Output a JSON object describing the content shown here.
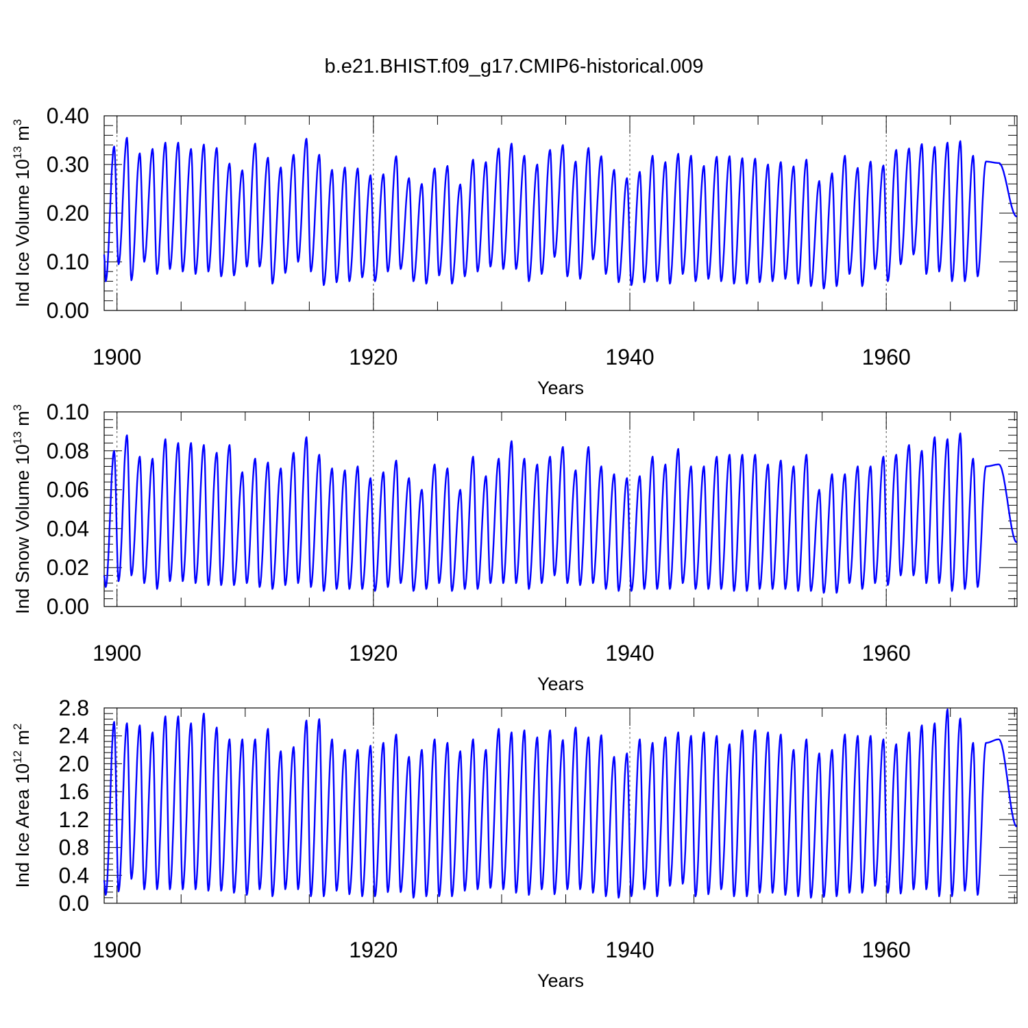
{
  "title": "b.e21.BHIST.f09_g17.CMIP6-historical.009",
  "series_color": "#0000ff",
  "chart_data": [
    {
      "type": "line",
      "name": "ice-volume",
      "ylabel": "Ind Ice Volume 10",
      "ylabel_exp": "13",
      "ylabel_unit": " m",
      "ylabel_unit_exp": "3",
      "xlabel": "Years",
      "xlim": [
        1899,
        1970.2
      ],
      "ylim": [
        0.0,
        0.4
      ],
      "yticks": [
        0.0,
        0.1,
        0.2,
        0.3,
        0.4
      ],
      "yticklabels": [
        "0.00",
        "0.10",
        "0.20",
        "0.30",
        "0.40"
      ],
      "xticks": [
        1900,
        1920,
        1940,
        1960
      ],
      "xticklabels": [
        "1900",
        "1920",
        "1940",
        "1960"
      ],
      "grid_x": [
        1900,
        1920,
        1940,
        1960
      ],
      "start_year": 1899,
      "first_value": 0.115,
      "last_value": 0.193,
      "annual_max": [
        0.337,
        0.355,
        0.323,
        0.332,
        0.345,
        0.345,
        0.332,
        0.341,
        0.334,
        0.302,
        0.288,
        0.343,
        0.314,
        0.294,
        0.32,
        0.353,
        0.32,
        0.289,
        0.294,
        0.292,
        0.278,
        0.28,
        0.317,
        0.272,
        0.26,
        0.292,
        0.297,
        0.259,
        0.31,
        0.305,
        0.333,
        0.343,
        0.318,
        0.3,
        0.33,
        0.34,
        0.306,
        0.334,
        0.317,
        0.289,
        0.272,
        0.285,
        0.318,
        0.305,
        0.322,
        0.318,
        0.297,
        0.316,
        0.317,
        0.313,
        0.312,
        0.3,
        0.305,
        0.296,
        0.31,
        0.266,
        0.282,
        0.318,
        0.293,
        0.306,
        0.298,
        0.33,
        0.333,
        0.342,
        0.336,
        0.345,
        0.348,
        0.318,
        0.306,
        0.303
      ],
      "annual_min": [
        0.06,
        0.095,
        0.062,
        0.1,
        0.075,
        0.085,
        0.08,
        0.075,
        0.08,
        0.07,
        0.072,
        0.09,
        0.09,
        0.055,
        0.077,
        0.1,
        0.08,
        0.052,
        0.058,
        0.06,
        0.068,
        0.06,
        0.08,
        0.085,
        0.06,
        0.055,
        0.072,
        0.055,
        0.07,
        0.08,
        0.09,
        0.085,
        0.085,
        0.06,
        0.075,
        0.11,
        0.07,
        0.065,
        0.105,
        0.075,
        0.058,
        0.052,
        0.058,
        0.06,
        0.055,
        0.075,
        0.06,
        0.065,
        0.06,
        0.055,
        0.055,
        0.058,
        0.06,
        0.065,
        0.055,
        0.05,
        0.045,
        0.05,
        0.075,
        0.05,
        0.085,
        0.06,
        0.095,
        0.115,
        0.075,
        0.08,
        0.06,
        0.06,
        0.07
      ]
    },
    {
      "type": "line",
      "name": "snow-volume",
      "ylabel": "Ind Snow Volume 10",
      "ylabel_exp": "13",
      "ylabel_unit": " m",
      "ylabel_unit_exp": "3",
      "xlabel": "Years",
      "xlim": [
        1899,
        1970.2
      ],
      "ylim": [
        0.0,
        0.1
      ],
      "yticks": [
        0.0,
        0.02,
        0.04,
        0.06,
        0.08,
        0.1
      ],
      "yticklabels": [
        "0.00",
        "0.02",
        "0.04",
        "0.06",
        "0.08",
        "0.10"
      ],
      "xticks": [
        1900,
        1920,
        1940,
        1960
      ],
      "xticklabels": [
        "1900",
        "1920",
        "1940",
        "1960"
      ],
      "grid_x": [
        1900,
        1920,
        1940,
        1960
      ],
      "start_year": 1899,
      "first_value": 0.016,
      "last_value": 0.033,
      "annual_max": [
        0.08,
        0.088,
        0.077,
        0.076,
        0.086,
        0.084,
        0.084,
        0.083,
        0.079,
        0.083,
        0.069,
        0.076,
        0.074,
        0.071,
        0.079,
        0.087,
        0.078,
        0.071,
        0.07,
        0.072,
        0.066,
        0.069,
        0.075,
        0.066,
        0.06,
        0.073,
        0.071,
        0.06,
        0.077,
        0.067,
        0.076,
        0.085,
        0.076,
        0.073,
        0.077,
        0.082,
        0.07,
        0.082,
        0.072,
        0.068,
        0.066,
        0.067,
        0.077,
        0.073,
        0.081,
        0.072,
        0.072,
        0.077,
        0.078,
        0.078,
        0.078,
        0.073,
        0.075,
        0.072,
        0.078,
        0.06,
        0.068,
        0.068,
        0.072,
        0.072,
        0.077,
        0.078,
        0.083,
        0.08,
        0.087,
        0.086,
        0.089,
        0.076,
        0.072,
        0.073
      ],
      "annual_min": [
        0.01,
        0.013,
        0.016,
        0.012,
        0.009,
        0.013,
        0.013,
        0.012,
        0.011,
        0.011,
        0.011,
        0.012,
        0.01,
        0.009,
        0.011,
        0.012,
        0.01,
        0.008,
        0.009,
        0.009,
        0.009,
        0.008,
        0.01,
        0.012,
        0.008,
        0.009,
        0.012,
        0.008,
        0.009,
        0.009,
        0.012,
        0.012,
        0.012,
        0.009,
        0.012,
        0.016,
        0.012,
        0.011,
        0.012,
        0.009,
        0.008,
        0.008,
        0.009,
        0.009,
        0.009,
        0.012,
        0.009,
        0.009,
        0.009,
        0.008,
        0.008,
        0.009,
        0.009,
        0.009,
        0.008,
        0.008,
        0.007,
        0.007,
        0.012,
        0.009,
        0.012,
        0.011,
        0.016,
        0.016,
        0.012,
        0.012,
        0.008,
        0.009,
        0.01
      ]
    },
    {
      "type": "line",
      "name": "ice-area",
      "ylabel": "Ind Ice Area 10",
      "ylabel_exp": "12",
      "ylabel_unit": " m",
      "ylabel_unit_exp": "2",
      "xlabel": "Years",
      "xlim": [
        1899,
        1970.2
      ],
      "ylim": [
        0.0,
        2.8
      ],
      "yticks": [
        0.0,
        0.4,
        0.8,
        1.2,
        1.6,
        2.0,
        2.4,
        2.8
      ],
      "yticklabels": [
        "0.0",
        "0.4",
        "0.8",
        "1.2",
        "1.6",
        "2.0",
        "2.4",
        "2.8"
      ],
      "xticks": [
        1900,
        1920,
        1940,
        1960
      ],
      "xticklabels": [
        "1900",
        "1920",
        "1940",
        "1960"
      ],
      "grid_x": [
        1900,
        1920,
        1940,
        1960
      ],
      "start_year": 1899,
      "first_value": 0.33,
      "last_value": 1.1,
      "annual_max": [
        2.6,
        2.58,
        2.55,
        2.45,
        2.68,
        2.68,
        2.58,
        2.72,
        2.52,
        2.35,
        2.35,
        2.35,
        2.5,
        2.18,
        2.24,
        2.62,
        2.64,
        2.35,
        2.2,
        2.2,
        2.26,
        2.3,
        2.42,
        2.1,
        2.2,
        2.35,
        2.3,
        2.18,
        2.35,
        2.2,
        2.5,
        2.45,
        2.48,
        2.38,
        2.48,
        2.34,
        2.52,
        2.38,
        2.41,
        2.1,
        2.15,
        2.35,
        2.3,
        2.38,
        2.45,
        2.4,
        2.45,
        2.4,
        2.28,
        2.48,
        2.48,
        2.45,
        2.42,
        2.2,
        2.35,
        2.15,
        2.2,
        2.42,
        2.4,
        2.4,
        2.35,
        2.28,
        2.45,
        2.55,
        2.58,
        2.78,
        2.65,
        2.3,
        2.3,
        2.35
      ],
      "annual_min": [
        0.12,
        0.17,
        0.35,
        0.2,
        0.2,
        0.2,
        0.2,
        0.2,
        0.18,
        0.18,
        0.15,
        0.12,
        0.2,
        0.1,
        0.2,
        0.2,
        0.1,
        0.1,
        0.18,
        0.13,
        0.1,
        0.1,
        0.16,
        0.16,
        0.08,
        0.1,
        0.1,
        0.1,
        0.18,
        0.2,
        0.22,
        0.2,
        0.15,
        0.12,
        0.2,
        0.13,
        0.2,
        0.2,
        0.15,
        0.1,
        0.08,
        0.1,
        0.2,
        0.1,
        0.25,
        0.28,
        0.1,
        0.13,
        0.2,
        0.1,
        0.1,
        0.15,
        0.15,
        0.12,
        0.1,
        0.08,
        0.09,
        0.1,
        0.15,
        0.15,
        0.25,
        0.15,
        0.14,
        0.2,
        0.2,
        0.1,
        0.1,
        0.18,
        0.12
      ]
    }
  ]
}
